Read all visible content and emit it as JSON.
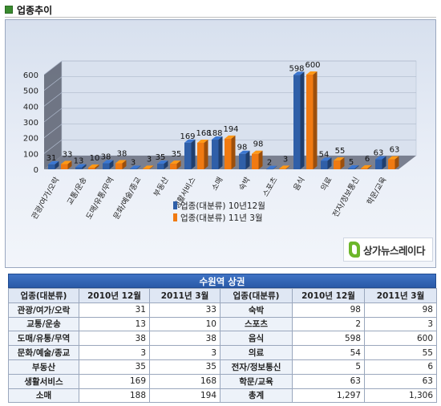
{
  "section": {
    "title": "업종추이",
    "colors": {
      "bullet": "#3a8b2f"
    }
  },
  "brand": {
    "name": "상가뉴스레이다"
  },
  "chart_data": {
    "type": "bar",
    "categories": [
      "관광/여가/오락",
      "교통/운송",
      "도매/유통/무역",
      "문화/예술/종교",
      "부동산",
      "생활서비스",
      "소매",
      "숙박",
      "스포츠",
      "음식",
      "의료",
      "전자/정보통신",
      "학문/교육"
    ],
    "series": [
      {
        "name": "업종(대분류) 10년12월",
        "values": [
          31,
          13,
          38,
          3,
          35,
          169,
          188,
          98,
          2,
          598,
          54,
          5,
          63
        ],
        "color": "#2f5fa8"
      },
      {
        "name": "업종(대분류) 11년 3월",
        "values": [
          33,
          10,
          38,
          3,
          35,
          168,
          194,
          98,
          3,
          600,
          55,
          6,
          63
        ],
        "color": "#f07a12"
      }
    ],
    "y_ticks": [
      "0",
      "100",
      "200",
      "300",
      "400",
      "500",
      "600"
    ],
    "ylim": [
      0,
      600
    ],
    "legend_position": "bottom-center",
    "grid": true
  },
  "table": {
    "title": "수원역 상권",
    "headers": [
      "업종(대분류)",
      "2010년 12월",
      "2011년 3월",
      "업종(대분류)",
      "2010년 12월",
      "2011년 3월"
    ],
    "rows": [
      [
        "관광/여가/오락",
        "31",
        "33",
        "숙박",
        "98",
        "98"
      ],
      [
        "교통/운송",
        "13",
        "10",
        "스포츠",
        "2",
        "3"
      ],
      [
        "도매/유통/무역",
        "38",
        "38",
        "음식",
        "598",
        "600"
      ],
      [
        "문화/예술/종교",
        "3",
        "3",
        "의료",
        "54",
        "55"
      ],
      [
        "부동산",
        "35",
        "35",
        "전자/정보통신",
        "5",
        "6"
      ],
      [
        "생활서비스",
        "169",
        "168",
        "학문/교육",
        "63",
        "63"
      ],
      [
        "소매",
        "188",
        "194",
        "총계",
        "1,297",
        "1,306"
      ]
    ]
  }
}
